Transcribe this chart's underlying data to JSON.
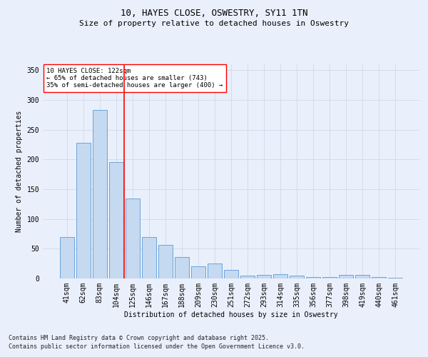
{
  "title": "10, HAYES CLOSE, OSWESTRY, SY11 1TN",
  "subtitle": "Size of property relative to detached houses in Oswestry",
  "xlabel": "Distribution of detached houses by size in Oswestry",
  "ylabel": "Number of detached properties",
  "categories": [
    "41sqm",
    "62sqm",
    "83sqm",
    "104sqm",
    "125sqm",
    "146sqm",
    "167sqm",
    "188sqm",
    "209sqm",
    "230sqm",
    "251sqm",
    "272sqm",
    "293sqm",
    "314sqm",
    "335sqm",
    "356sqm",
    "377sqm",
    "398sqm",
    "419sqm",
    "440sqm",
    "461sqm"
  ],
  "values": [
    70,
    228,
    283,
    196,
    134,
    70,
    57,
    36,
    20,
    25,
    14,
    5,
    6,
    7,
    5,
    3,
    3,
    6,
    6,
    2,
    1
  ],
  "bar_color": "#c5d9f0",
  "bar_edge_color": "#5b9bd5",
  "vline_x": 3.5,
  "vline_color": "#ff0000",
  "annotation_text": "10 HAYES CLOSE: 122sqm\n← 65% of detached houses are smaller (743)\n35% of semi-detached houses are larger (400) →",
  "annotation_box_color": "#ffffff",
  "annotation_box_edge": "#ff0000",
  "ylim": [
    0,
    360
  ],
  "yticks": [
    0,
    50,
    100,
    150,
    200,
    250,
    300,
    350
  ],
  "grid_color": "#d0d8e8",
  "footer1": "Contains HM Land Registry data © Crown copyright and database right 2025.",
  "footer2": "Contains public sector information licensed under the Open Government Licence v3.0.",
  "title_fontsize": 9,
  "subtitle_fontsize": 8,
  "axis_fontsize": 7,
  "tick_fontsize": 7,
  "footer_fontsize": 6,
  "annotation_fontsize": 6.5,
  "bg_color": "#eaf0fb"
}
